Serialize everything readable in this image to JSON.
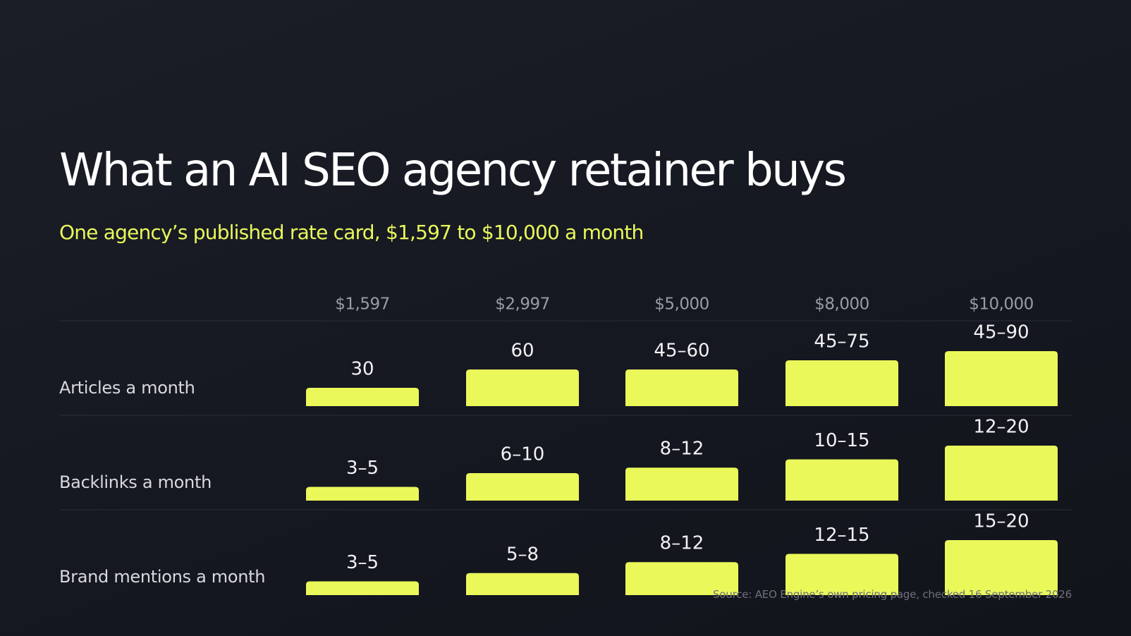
{
  "title": "What an AI SEO agency retainer buys",
  "subtitle": "One agency’s published rate card, $1,597 to $10,000 a month",
  "source": "Source: AEO Engine’s own pricing page, checked 16 September 2026",
  "colors": {
    "background": "#171a22",
    "accent": "#eaf85a",
    "title": "#ffffff",
    "muted": "#9a9ca5"
  },
  "chart_data": {
    "type": "bar",
    "categories": [
      "$1,597",
      "$2,997",
      "$5,000",
      "$8,000",
      "$10,000"
    ],
    "series": [
      {
        "name": "Articles a month",
        "values": [
          30,
          60,
          60,
          75,
          90
        ],
        "labels": [
          "30",
          "60",
          "45–60",
          "45–75",
          "45–90"
        ]
      },
      {
        "name": "Backlinks a month",
        "values": [
          5,
          10,
          12,
          15,
          20
        ],
        "labels": [
          "3–5",
          "6–10",
          "8–12",
          "10–15",
          "12–20"
        ]
      },
      {
        "name": "Brand mentions a month",
        "values": [
          5,
          8,
          12,
          15,
          20
        ],
        "labels": [
          "3–5",
          "5–8",
          "8–12",
          "12–15",
          "15–20"
        ]
      }
    ]
  }
}
